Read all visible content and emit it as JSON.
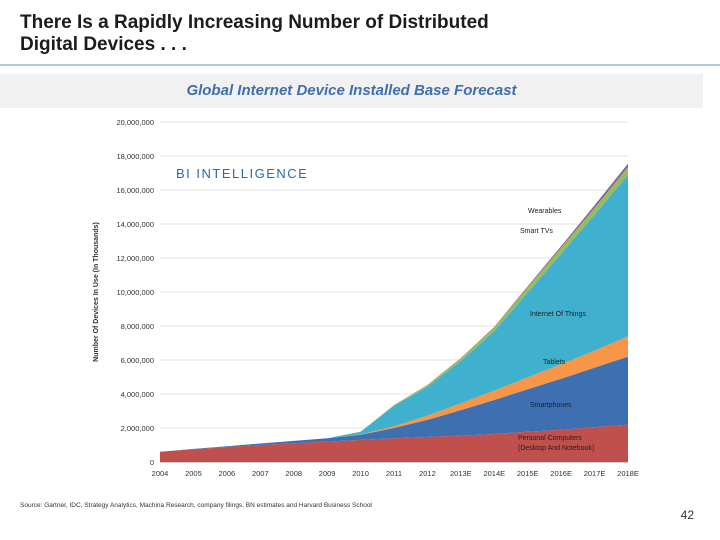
{
  "slide": {
    "title_line1": "There Is a Rapidly Increasing Number of Distributed",
    "title_line2": "Digital Devices . . .",
    "subtitle": "Global Internet Device Installed Base Forecast",
    "source": "Source: Gartner, IDC, Strategy Analytics, Machina Research, company filings, BN estimates and Harvard Business School",
    "page_number": "42"
  },
  "chart_data": {
    "type": "area",
    "stacked": true,
    "watermark": "BI INTELLIGENCE",
    "ylabel": "Number Of Devices In Use (In Thousands)",
    "xlabel": "",
    "ylim": [
      0,
      20000000
    ],
    "yticks": [
      "0",
      "2,000,000",
      "4,000,000",
      "6,000,000",
      "8,000,000",
      "10,000,000",
      "12,000,000",
      "14,000,000",
      "16,000,000",
      "18,000,000",
      "20,000,000"
    ],
    "categories": [
      "2004",
      "2005",
      "2006",
      "2007",
      "2008",
      "2009",
      "2010",
      "2011",
      "2012",
      "2013E",
      "2014E",
      "2015E",
      "2016E",
      "2017E",
      "2018E"
    ],
    "series": [
      {
        "name": "Personal Computers (Desktop And Notebook)",
        "label_lines": [
          "Personal Computers",
          "(Desktop And Notebook)"
        ],
        "color": "#c0504d",
        "values": [
          600000,
          750000,
          880000,
          1000000,
          1100000,
          1200000,
          1300000,
          1400000,
          1480000,
          1550000,
          1650000,
          1780000,
          1900000,
          2050000,
          2200000
        ]
      },
      {
        "name": "Smartphones",
        "label_lines": [
          "Smartphones"
        ],
        "color": "#3e6fb0",
        "values": [
          0,
          20000,
          50000,
          90000,
          140000,
          200000,
          300000,
          600000,
          1000000,
          1500000,
          2000000,
          2500000,
          3000000,
          3500000,
          4000000
        ]
      },
      {
        "name": "Tablets",
        "label_lines": [
          "Tablets"
        ],
        "color": "#f79646",
        "values": [
          0,
          0,
          0,
          0,
          0,
          0,
          20000,
          100000,
          250000,
          400000,
          550000,
          700000,
          850000,
          1000000,
          1200000
        ]
      },
      {
        "name": "Internet Of Things",
        "label_lines": [
          "Internet Of Things"
        ],
        "color": "#3fb1cf",
        "values": [
          0,
          0,
          0,
          0,
          0,
          0,
          150000,
          1200000,
          1700000,
          2500000,
          3500000,
          5000000,
          6500000,
          8000000,
          9500000
        ]
      },
      {
        "name": "Smart TVs",
        "label_lines": [
          "Smart TVs"
        ],
        "color": "#9bbb59",
        "values": [
          0,
          0,
          0,
          0,
          0,
          0,
          20000,
          50000,
          100000,
          150000,
          200000,
          300000,
          350000,
          400000,
          450000
        ]
      },
      {
        "name": "Wearables",
        "label_lines": [
          "Wearables"
        ],
        "color": "#8064a2",
        "values": [
          0,
          0,
          0,
          0,
          0,
          0,
          0,
          0,
          10000,
          20000,
          40000,
          60000,
          100000,
          150000,
          200000
        ]
      }
    ]
  }
}
